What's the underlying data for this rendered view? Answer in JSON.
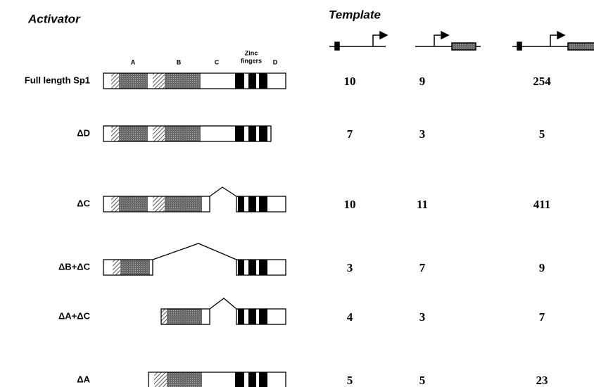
{
  "header": {
    "activator": "Activator",
    "template": "Template"
  },
  "domains": {
    "a": "A",
    "b": "B",
    "c": "C",
    "zinc": "Zinc",
    "fingers": "fingers",
    "d": "D"
  },
  "rows": [
    {
      "label": "Full length Sp1",
      "values": [
        "10",
        "9",
        "254"
      ]
    },
    {
      "label": "ΔD",
      "values": [
        "7",
        "3",
        "5"
      ]
    },
    {
      "label": "ΔC",
      "values": [
        "10",
        "11",
        "411"
      ]
    },
    {
      "label": "ΔB+ΔC",
      "values": [
        "3",
        "7",
        "9"
      ]
    },
    {
      "label": "ΔA+ΔC",
      "values": [
        "4",
        "3",
        "7"
      ]
    },
    {
      "label": "ΔA",
      "values": [
        "5",
        "5",
        "23"
      ]
    }
  ]
}
